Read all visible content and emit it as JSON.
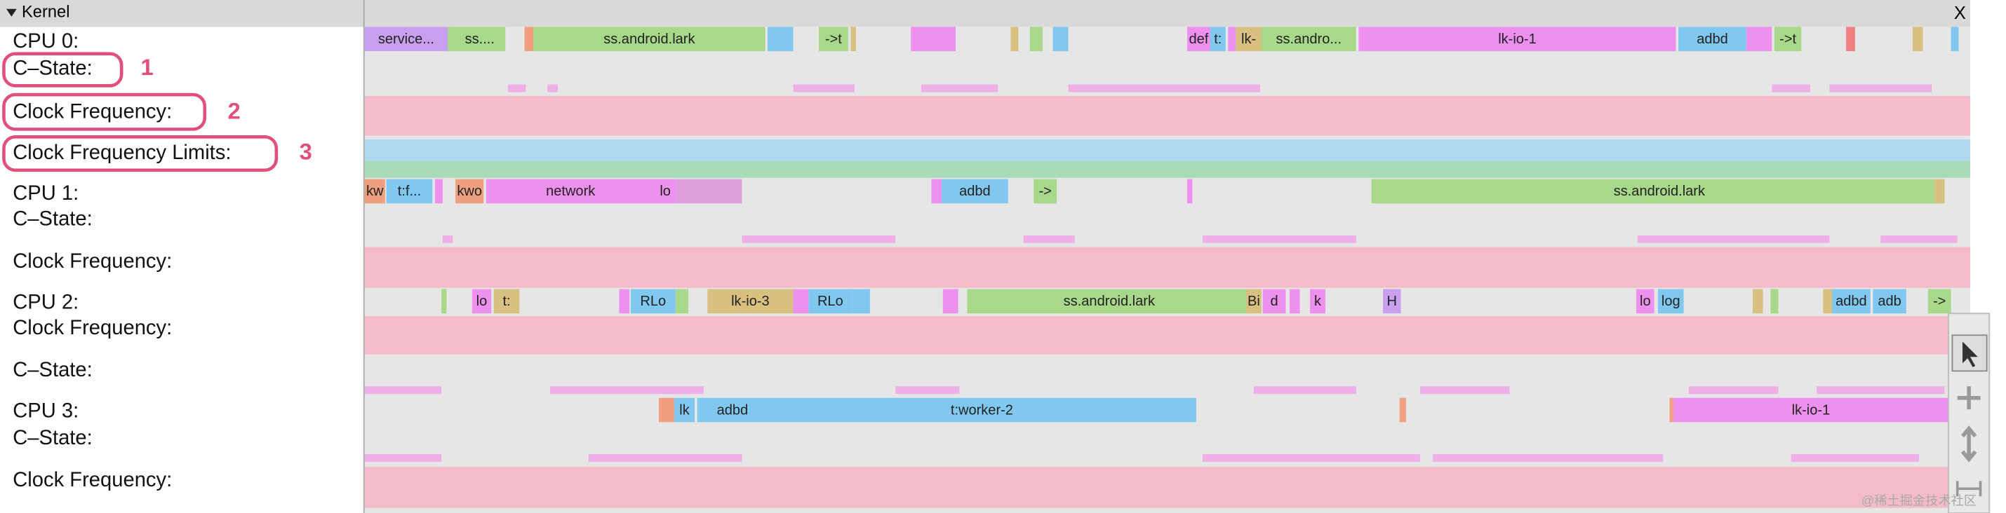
{
  "header": {
    "title": "Kernel",
    "close": "X"
  },
  "rows": [
    "CPU 0:",
    "C–State:",
    "Clock Frequency:",
    "Clock Frequency Limits:",
    "CPU 1:",
    "C–State:",
    "Clock Frequency:",
    "CPU 2:",
    "Clock Frequency:",
    "C–State:",
    "CPU 3:",
    "C–State:",
    "Clock Frequency:"
  ],
  "annotations": [
    "1",
    "2",
    "3"
  ],
  "slices": {
    "cpu0": [
      "service...",
      "ss....",
      "ss.android.lark",
      "->t",
      "def",
      "t:",
      "lk-",
      "ss.andro...",
      "lk-io-1",
      "adbd",
      "->t"
    ],
    "cpu1": [
      "kw",
      "t:f...",
      "kwo",
      "network",
      "lo",
      "adbd",
      "->",
      "ss.android.lark"
    ],
    "cpu2": [
      "lo",
      "t:",
      "RLo",
      "lk-io-3",
      "RLo",
      "ss.android.lark",
      "Bi",
      "d",
      "k",
      "H",
      "lo",
      "log",
      "adbd",
      "adb",
      "->"
    ],
    "cpu3": [
      "lk",
      "adbd",
      "t:worker-2",
      "lk-io-1"
    ]
  },
  "watermark": "@稀土掘金技术社区"
}
